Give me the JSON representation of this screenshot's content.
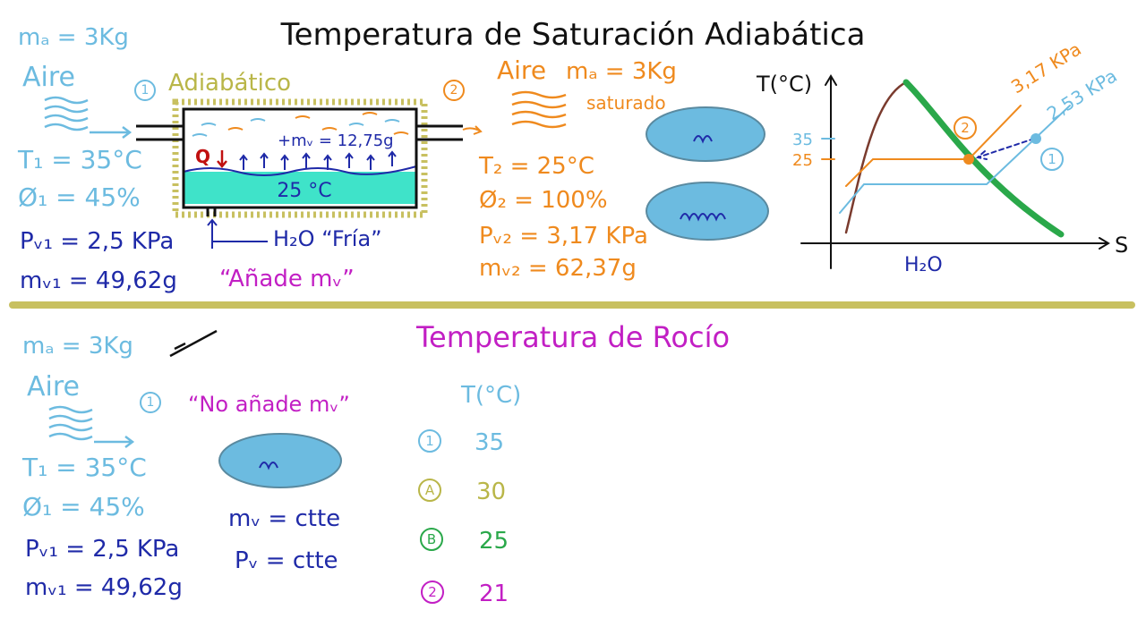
{
  "top": {
    "title": "Temperatura de Saturación Adiabática",
    "left": {
      "ma": "mₐ = 3Kg",
      "air": "Aire",
      "t1": "T₁ = 35°C",
      "phi1": "Ø₁ = 45%",
      "pv1": "Pᵥ₁ = 2,5 KPa",
      "mv1": "mᵥ₁ = 49,62g"
    },
    "state1": "1",
    "adiabatic": "Adiabático",
    "chamber": {
      "added": "+mᵥ = 12,75g",
      "heat": "Q",
      "water_temp": "25 °C",
      "water": "H₂O “Fría”",
      "note": "“Añade mᵥ”"
    },
    "state2": "2",
    "right": {
      "air": "Aire",
      "ma": "mₐ = 3Kg",
      "saturated": "saturado",
      "t2": "T₂ = 25°C",
      "phi2": "Ø₂ = 100%",
      "pv2": "Pᵥ₂ = 3,17 KPa",
      "mv2": "mᵥ₂ = 62,37g"
    },
    "diagram": {
      "y_label": "T(°C)",
      "x_label": "S",
      "tick_35": "35",
      "tick_25": "25",
      "isobar_2": "3,17 KPa",
      "isobar_1": "2,53 KPa",
      "point_2": "2",
      "point_1": "1",
      "substance": "H₂O"
    }
  },
  "bottom": {
    "title": "Temperatura de Rocío",
    "left": {
      "ma": "mₐ = 3Kg",
      "air": "Aire",
      "t1": "T₁ = 35°C",
      "phi1": "Ø₁ = 45%",
      "pv1": "Pᵥ₁ = 2,5 KPa",
      "mv1": "mᵥ₁ = 49,62g"
    },
    "state1": "1",
    "note": "“No añade mᵥ”",
    "mv": "mᵥ = ctte",
    "pv": "Pᵥ = ctte",
    "table": {
      "header": "T(°C)",
      "rows": [
        [
          "1",
          "35"
        ],
        [
          "A",
          "30"
        ],
        [
          "B",
          "25"
        ],
        [
          "2",
          "21"
        ]
      ]
    }
  }
}
